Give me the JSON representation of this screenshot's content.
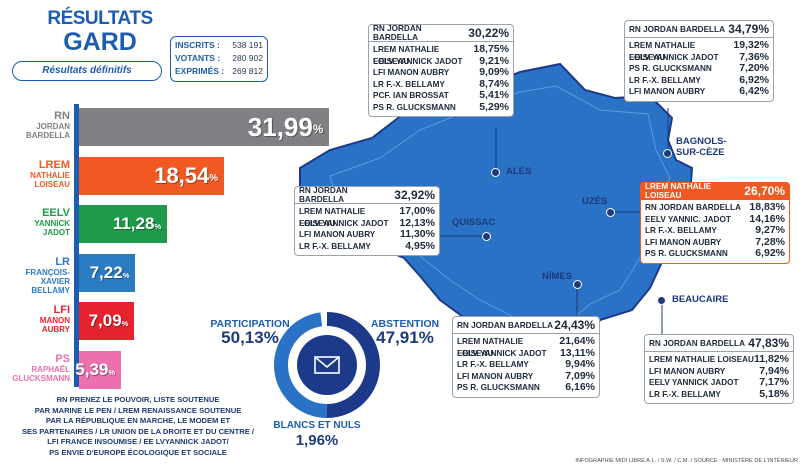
{
  "title": {
    "line1": "RÉSULTATS",
    "line2": "GARD",
    "subtitle": "Résultats définitifs"
  },
  "stats": {
    "inscrits_label": "INSCRITS :",
    "inscrits": "538 191",
    "votants_label": "VOTANTS :",
    "votants": "280 902",
    "exprimes_label": "EXPRIMÉS :",
    "exprimes": "269 812"
  },
  "chart_data": {
    "type": "bar",
    "title": "RÉSULTATS GARD",
    "categories": [
      "RN JORDAN BARDELLA",
      "LREM NATHALIE LOISEAU",
      "EELV YANNICK JADOT",
      "LR FRANÇOIS-XAVIER BELLAMY",
      "LFI MANON AUBRY",
      "PS RAPHAËL GLUCKSMANN"
    ],
    "values": [
      31.99,
      18.54,
      11.28,
      7.22,
      7.09,
      5.39
    ],
    "series_labels": [
      {
        "party": "RN",
        "name": "JORDAN\nBARDELLA",
        "label": "31,99",
        "color": "#808184"
      },
      {
        "party": "LREM",
        "name": "NATHALIE\nLOISEAU",
        "label": "18,54",
        "color": "#f05a22"
      },
      {
        "party": "EELV",
        "name": "YANNICK\nJADOT",
        "label": "11,28",
        "color": "#1f9a48"
      },
      {
        "party": "LR",
        "name": "FRANÇOIS-XAVIER\nBELLAMY",
        "label": "7,22",
        "color": "#2a7cc2"
      },
      {
        "party": "LFI",
        "name": "MANON\nAUBRY",
        "label": "7,09",
        "color": "#e5232f"
      },
      {
        "party": "PS",
        "name": "RAPHAËL\nGLUCKSMANN",
        "label": "5,39",
        "color": "#ec6fae"
      }
    ],
    "unit": "%",
    "xlabel": "",
    "ylabel": "",
    "ylim": [
      0,
      34
    ]
  },
  "participation": {
    "label": "PARTICIPATION",
    "value": "50,13%"
  },
  "abstention": {
    "label": "ABSTENTION",
    "value": "47,91%"
  },
  "blancs": {
    "label": "BLANCS ET NULS",
    "value": "1,96%"
  },
  "donut": {
    "participation": 50.13,
    "abstention": 47.91,
    "blancs": 1.96,
    "color_participation": "#1d3a8a",
    "color_abstention": "#2a72c6"
  },
  "legend_lines": [
    "RN PRENEZ LE POUVOIR, LISTE SOUTENUE",
    "PAR MARINE LE PEN / LREM RENAISSANCE SOUTENUE",
    "PAR LA RÉPUBLIQUE EN MARCHE, LE MODEM ET",
    "SES PARTENAIRES / LR UNION DE LA DROITE ET DU CENTRE /",
    "LFI FRANCE INSOUMISE / EE LVYANNICK JADOT/",
    "PS ENVIE D'EUROPE ÉCOLOGIQUE ET SOCIALE"
  ],
  "cities": {
    "ales": "ALÈS",
    "bagnols": "BAGNOLS-\nSUR-CÈZE",
    "uzes": "UZÈS",
    "quissac": "QUISSAC",
    "nimes": "NÎMES",
    "beaucaire": "BEAUCAIRE"
  },
  "boxes": [
    {
      "id": "ales",
      "head": {
        "name": "RN JORDAN BARDELLA",
        "value": "30,22%"
      },
      "highlight": false,
      "rows": [
        {
          "name": "LREM NATHALIE LOISEAU",
          "value": "18,75%"
        },
        {
          "name": "EELV YANNICK JADOT",
          "value": "9,21%"
        },
        {
          "name": "LFI MANON AUBRY",
          "value": "9,09%"
        },
        {
          "name": "LR F.-X. BELLAMY",
          "value": "8,74%"
        },
        {
          "name": "PCF. IAN BROSSAT",
          "value": "5,41%"
        },
        {
          "name": "PS R. GLUCKSMANN",
          "value": "5,29%"
        }
      ]
    },
    {
      "id": "bagnols",
      "head": {
        "name": "RN JORDAN BARDELLA",
        "value": "34,79%"
      },
      "highlight": false,
      "rows": [
        {
          "name": "LREM NATHALIE LOISEAU",
          "value": "19,32%"
        },
        {
          "name": "EELV YANNICK JADOT",
          "value": "7,36%"
        },
        {
          "name": "PS R. GLUCKSMANN",
          "value": "7,20%"
        },
        {
          "name": "LR F.-X. BELLAMY",
          "value": "6,92%"
        },
        {
          "name": "LFI MANON AUBRY",
          "value": "6,42%"
        }
      ]
    },
    {
      "id": "quissac",
      "head": {
        "name": "RN JORDAN BARDELLA",
        "value": "32,92%"
      },
      "highlight": false,
      "rows": [
        {
          "name": "LREM NATHALIE LOISEAU",
          "value": "17,00%"
        },
        {
          "name": "EELV YANNICK JADOT",
          "value": "12,13%"
        },
        {
          "name": "LFI MANON AUBRY",
          "value": "11,30%"
        },
        {
          "name": "LR F.-X. BELLAMY",
          "value": "4,95%"
        }
      ]
    },
    {
      "id": "uzes",
      "head": {
        "name": "LREM NATHALIE LOISEAU",
        "value": "26,70%"
      },
      "highlight": true,
      "rows": [
        {
          "name": "RN JORDAN BARDELLA",
          "value": "18,83%"
        },
        {
          "name": "EELV YANNIC. JADOT",
          "value": "14,16%"
        },
        {
          "name": "LR F.-X. BELLAMY",
          "value": "9,27%"
        },
        {
          "name": "LFI MANON AUBRY",
          "value": "7,28%"
        },
        {
          "name": "PS R. GLUCKSMANN",
          "value": "6,92%"
        }
      ]
    },
    {
      "id": "nimes",
      "head": {
        "name": "RN JORDAN BARDELLA",
        "value": "24,43%"
      },
      "highlight": false,
      "rows": [
        {
          "name": "LREM NATHALIE LOISEAU",
          "value": "21,64%"
        },
        {
          "name": "EELV YANNICK JADOT",
          "value": "13,11%"
        },
        {
          "name": "LR F.-X. BELLAMY",
          "value": "9,94%"
        },
        {
          "name": "LFI MANON AUBRY",
          "value": "7,09%"
        },
        {
          "name": "PS R. GLUCKSMANN",
          "value": "6,16%"
        }
      ]
    },
    {
      "id": "beaucaire",
      "head": {
        "name": "RN JORDAN BARDELLA",
        "value": "47,83%"
      },
      "highlight": false,
      "rows": [
        {
          "name": "LREM NATHALIE LOISEAU",
          "value": "11,82%"
        },
        {
          "name": "LFI MANON AUBRY",
          "value": "7,94%"
        },
        {
          "name": "EELV YANNICK JADOT",
          "value": "7,17%"
        },
        {
          "name": "LR F.-X. BELLAMY",
          "value": "5,18%"
        }
      ]
    }
  ],
  "credit": "INFOGRAPHIE MIDI LIBRE A.L. / S.W. / C.M. / SOURCE : MINISTÈRE DE L'INTÉRIEUR",
  "colors": {
    "accent": "#1d5db0",
    "map_fill": "#2a72c6",
    "map_stroke": "#1d3a8a",
    "highlight": "#f05a22"
  }
}
